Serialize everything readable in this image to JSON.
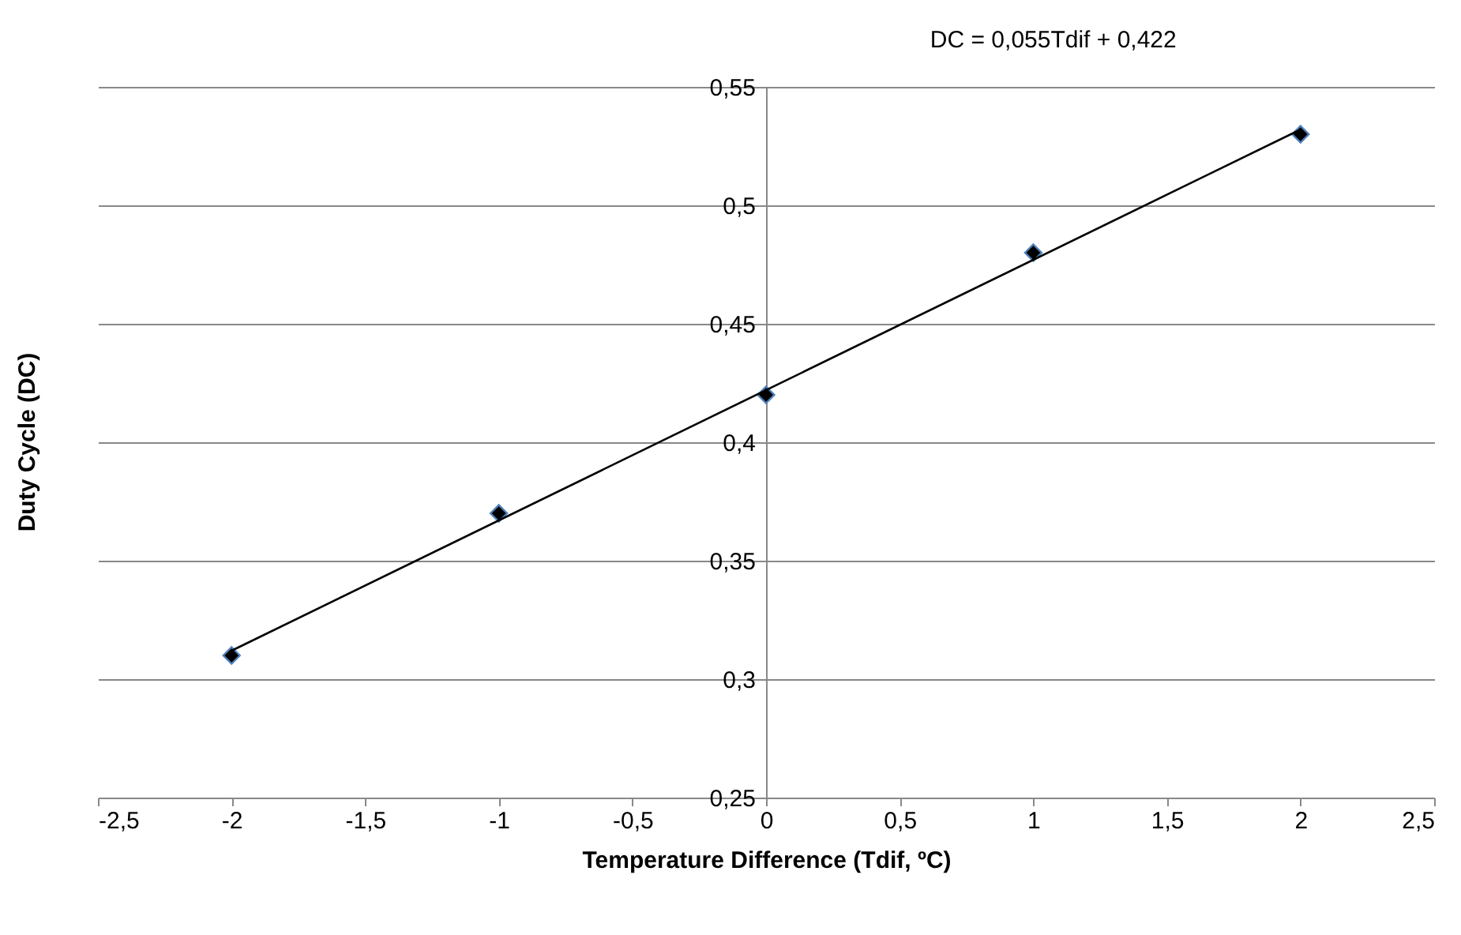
{
  "chart_data": {
    "type": "scatter",
    "xlabel": "Temperature Difference (Tdif, ºC)",
    "ylabel": "Duty Cycle (DC)",
    "annotations": [
      "DC = 0,055Tdif + 0,422"
    ],
    "series": [
      {
        "x": [
          -2,
          -1,
          0,
          1,
          2
        ],
        "values": [
          0.31,
          0.37,
          0.42,
          0.48,
          0.53
        ],
        "color": "#000000",
        "marker": "diamond"
      },
      {
        "type": "line",
        "x": [
          -2,
          2
        ],
        "values": [
          0.312,
          0.532
        ],
        "color": "#000000",
        "marker": "none"
      }
    ],
    "xlim": [
      -2.5,
      2.5
    ],
    "xticks": [
      {
        "value": -2.5,
        "label": "-2,5"
      },
      -2,
      {
        "value": -1.5,
        "label": "-1,5"
      },
      -1,
      {
        "value": -0.5,
        "label": "-0,5"
      },
      0,
      {
        "value": 0.5,
        "label": "0,5"
      },
      1,
      {
        "value": 1.5,
        "label": "1,5"
      },
      2,
      {
        "value": 2.5,
        "label": "2,5"
      }
    ],
    "ylim": [
      0.25,
      0.55
    ],
    "yticks": [
      {
        "value": 0.25,
        "label": "0,25"
      },
      {
        "value": 0.3,
        "label": "0,3"
      },
      {
        "value": 0.35,
        "label": "0,35"
      },
      {
        "value": 0.4,
        "label": "0,4"
      },
      {
        "value": 0.45,
        "label": "0,45"
      },
      {
        "value": 0.5,
        "label": "0,5"
      },
      {
        "value": 0.55,
        "label": "0,55"
      }
    ],
    "grid": "y"
  }
}
